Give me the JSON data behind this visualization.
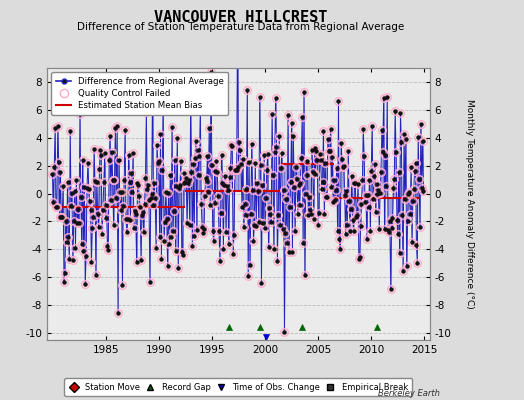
{
  "title": "VANCOUVER HILLCREST",
  "subtitle": "Difference of Station Temperature Data from Regional Average",
  "ylabel_right": "Monthly Temperature Anomaly Difference (°C)",
  "credit": "Berkeley Earth",
  "xlim": [
    1979.5,
    2015.5
  ],
  "ylim": [
    -10.5,
    9.0
  ],
  "yticks": [
    -10,
    -8,
    -6,
    -4,
    -2,
    0,
    2,
    4,
    6,
    8
  ],
  "xticks": [
    1985,
    1990,
    1995,
    2000,
    2005,
    2010,
    2015
  ],
  "bg_color": "#dcdcdc",
  "plot_bg_color": "#ebebeb",
  "grid_color": "#bbbbbb",
  "data_line_color": "#2222bb",
  "data_marker_color": "#111111",
  "qc_failed_color": "#ffaacc",
  "bias_line_color": "#cc0000",
  "station_move_color": "#cc0000",
  "record_gap_color": "#006600",
  "tobs_color": "#0000cc",
  "empirical_break_color": "#333333",
  "stem_color": "#5555cc",
  "seed": 42,
  "start_year": 1980,
  "end_year": 2014,
  "bias_segments": [
    {
      "start": 1980.0,
      "end": 1992.5,
      "value": -1.0
    },
    {
      "start": 1992.5,
      "end": 2001.5,
      "value": 0.2
    },
    {
      "start": 2001.5,
      "end": 2006.5,
      "value": 2.1
    },
    {
      "start": 2006.5,
      "end": 2014.5,
      "value": -0.3
    }
  ],
  "record_gaps": [
    1996.6,
    1999.5,
    2003.5,
    2010.5
  ],
  "tobs_changes": [
    2000.1
  ],
  "empirical_breaks": [],
  "station_moves": []
}
